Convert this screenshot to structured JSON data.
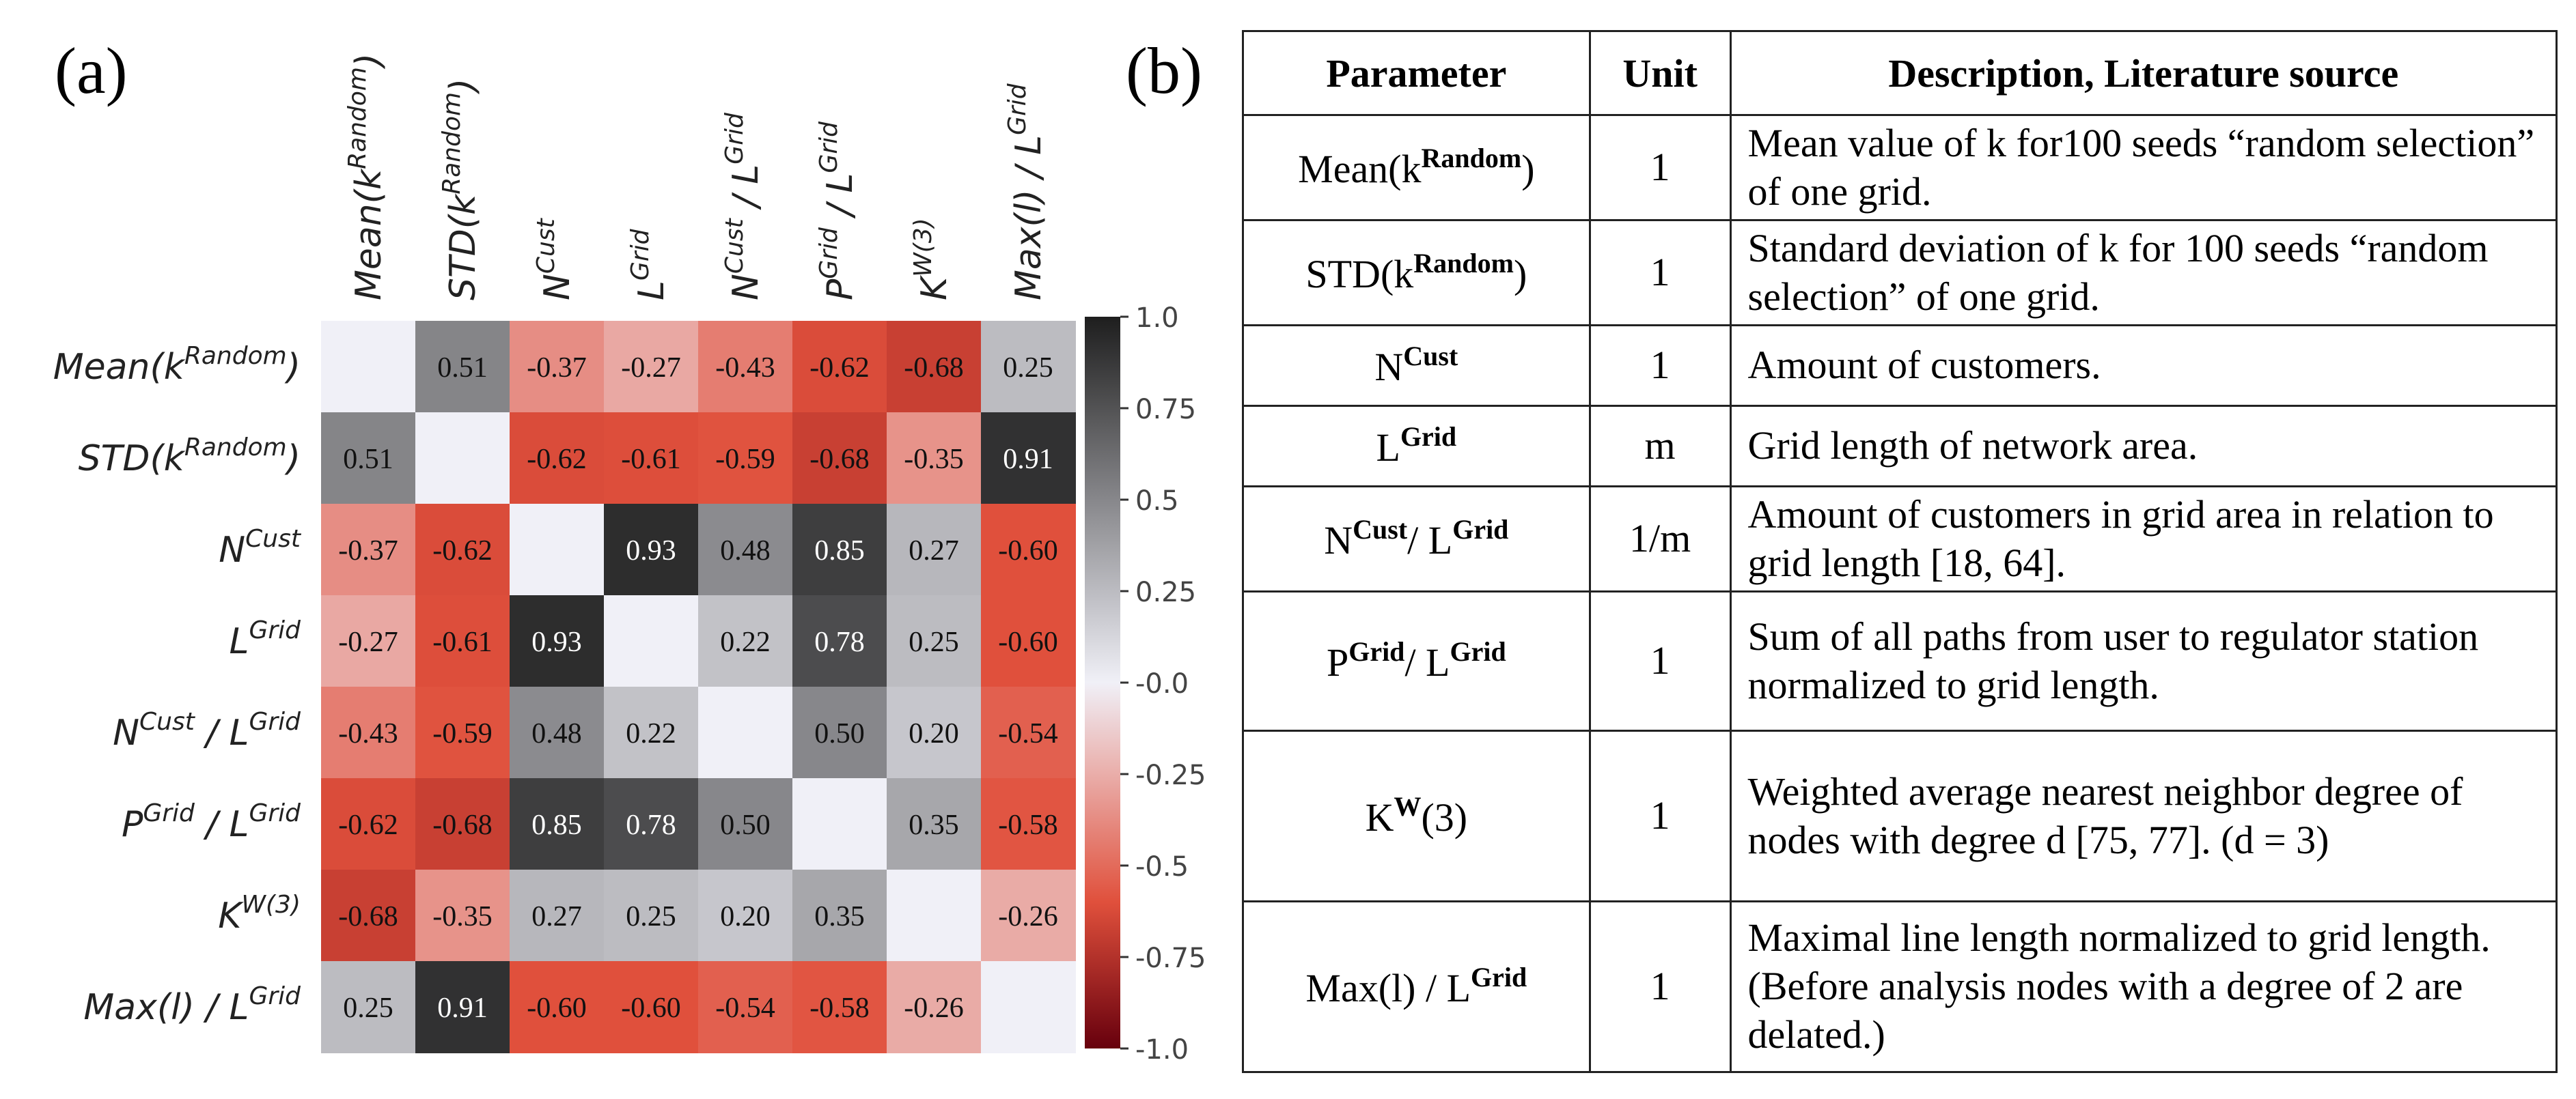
{
  "panel_labels": {
    "a": "(a)",
    "b": "(b)"
  },
  "chart_data": {
    "type": "heatmap",
    "title": "",
    "variables": [
      {
        "base": "Mean(k",
        "sup": "Random",
        "tail": ")"
      },
      {
        "base": "STD(k",
        "sup": "Random",
        "tail": ")"
      },
      {
        "base": "N",
        "sup": "Cust",
        "tail": ""
      },
      {
        "base": "L",
        "sup": "Grid",
        "tail": ""
      },
      {
        "base": "N",
        "sup": "Cust",
        "tail": " / L",
        "sup2": "Grid"
      },
      {
        "base": "P",
        "sup": "Grid",
        "tail": " / L",
        "sup2": "Grid"
      },
      {
        "base": "K",
        "sup": "W(3)",
        "tail": ""
      },
      {
        "base": "Max(l) / L",
        "sup": "Grid",
        "tail": ""
      }
    ],
    "values": [
      [
        null,
        0.51,
        -0.37,
        -0.27,
        -0.43,
        -0.62,
        -0.68,
        0.25
      ],
      [
        0.51,
        null,
        -0.62,
        -0.61,
        -0.59,
        -0.68,
        -0.35,
        0.91
      ],
      [
        -0.37,
        -0.62,
        null,
        0.93,
        0.48,
        0.85,
        0.27,
        -0.6
      ],
      [
        -0.27,
        -0.61,
        0.93,
        null,
        0.22,
        0.78,
        0.25,
        -0.6
      ],
      [
        -0.43,
        -0.59,
        0.48,
        0.22,
        null,
        0.5,
        0.2,
        -0.54
      ],
      [
        -0.62,
        -0.68,
        0.85,
        0.78,
        0.5,
        null,
        0.35,
        -0.58
      ],
      [
        -0.68,
        -0.35,
        0.27,
        0.25,
        0.2,
        0.35,
        null,
        -0.26
      ],
      [
        0.25,
        0.91,
        -0.6,
        -0.6,
        -0.54,
        -0.58,
        -0.26,
        null
      ]
    ],
    "cell_labels": [
      [
        "",
        "0.51",
        "-0.37",
        "-0.27",
        "-0.43",
        "-0.62",
        "-0.68",
        "0.25"
      ],
      [
        "0.51",
        "",
        "-0.62",
        "-0.61",
        "-0.59",
        "-0.68",
        "-0.35",
        "0.91"
      ],
      [
        "-0.37",
        "-0.62",
        "",
        "0.93",
        "0.48",
        "0.85",
        "0.27",
        "-0.60"
      ],
      [
        "-0.27",
        "-0.61",
        "0.93",
        "",
        "0.22",
        "0.78",
        "0.25",
        "-0.60"
      ],
      [
        "-0.43",
        "-0.59",
        "0.48",
        "0.22",
        "",
        "0.50",
        "0.20",
        "-0.54"
      ],
      [
        "-0.62",
        "-0.68",
        "0.85",
        "0.78",
        "0.50",
        "",
        "0.35",
        "-0.58"
      ],
      [
        "-0.68",
        "-0.35",
        "0.27",
        "0.25",
        "0.20",
        "0.35",
        "",
        "-0.26"
      ],
      [
        "0.25",
        "0.91",
        "-0.60",
        "-0.60",
        "-0.54",
        "-0.58",
        "-0.26",
        ""
      ]
    ],
    "colorbar": {
      "range": [
        -1.0,
        1.0
      ],
      "ticks": [
        1.0,
        0.75,
        0.5,
        0.25,
        0.0,
        -0.25,
        -0.5,
        -0.75,
        -1.0
      ],
      "tick_labels": [
        "1.0",
        "0.75",
        "0.5",
        "0.25",
        "-0.0",
        "-0.25",
        "-0.5",
        "-0.75",
        "-1.0"
      ],
      "colors": {
        "neg": "#67000d",
        "mid_neg": "#e0503c",
        "zero": "#f0f0f7",
        "pos": "#1e1e1e"
      },
      "placement": "right"
    }
  },
  "table": {
    "headers": [
      "Parameter",
      "Unit",
      "Description, Literature source"
    ],
    "rows": [
      {
        "param": {
          "base": "Mean(k",
          "sup": "Random",
          "tail": ")"
        },
        "unit": "1",
        "desc": "Mean value of k for100 seeds “random selection” of one grid."
      },
      {
        "param": {
          "base": "STD(k",
          "sup": "Random",
          "tail": ")"
        },
        "unit": "1",
        "desc": "Standard deviation of k for 100 seeds “random selection” of one grid."
      },
      {
        "param": {
          "base": "N",
          "sup": "Cust",
          "tail": ""
        },
        "unit": "1",
        "desc": "Amount of customers."
      },
      {
        "param": {
          "base": "L",
          "sup": "Grid",
          "tail": ""
        },
        "unit": "m",
        "desc": "Grid length of network area."
      },
      {
        "param": {
          "base": "N",
          "sup": "Cust",
          "tail": "/  L",
          "sup2": "Grid"
        },
        "unit": "1/m",
        "desc": "Amount of customers in grid area in relation to grid length [18, 64]."
      },
      {
        "param": {
          "base": "P",
          "sup": "Grid",
          "tail": "/  L",
          "sup2": "Grid"
        },
        "unit": "1",
        "desc": "Sum of all paths from user to regulator station normalized to grid length."
      },
      {
        "param": {
          "base": "K",
          "sup": "W",
          "tail": "(3)"
        },
        "unit": "1",
        "desc": "Weighted average nearest neighbor degree of nodes with degree d [75, 77]. (d = 3)"
      },
      {
        "param": {
          "base": "Max(l) / L",
          "sup": "Grid",
          "tail": ""
        },
        "unit": "1",
        "desc": "Maximal line length normalized to grid length. (Before analysis nodes with a degree of 2 are delated.)"
      }
    ]
  }
}
